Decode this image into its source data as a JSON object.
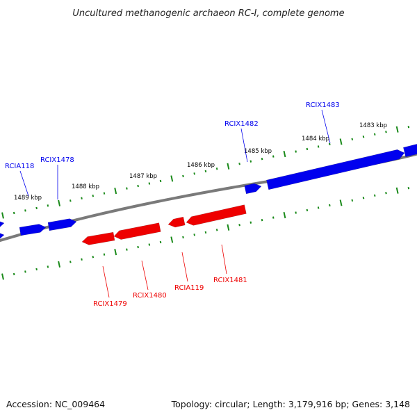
{
  "title": "Uncultured methanogenic archaeon RC-I, complete genome",
  "footer": {
    "accession": "Accession: NC_009464",
    "summary": "Topology: circular; Length: 3,179,916 bp; Genes: 3,148"
  },
  "colors": {
    "forward_gene": "#0000ee",
    "reverse_gene": "#ee0000",
    "backbone": "#808080",
    "ticks": "#1a8a1a"
  },
  "ruler": {
    "ticks": [
      {
        "label": "1483 kbp"
      },
      {
        "label": "1484 kbp"
      },
      {
        "label": "1485 kbp"
      },
      {
        "label": "1486 kbp"
      },
      {
        "label": "1487 kbp"
      },
      {
        "label": "1488 kbp"
      },
      {
        "label": "1489 kbp"
      }
    ]
  },
  "genes": {
    "forward": [
      {
        "label": "RCIA118"
      },
      {
        "label": "RCIX1478"
      },
      {
        "label": "RCIX1482"
      },
      {
        "label": "RCIX1483"
      }
    ],
    "reverse": [
      {
        "label": "RCIX1479"
      },
      {
        "label": "RCIX1480"
      },
      {
        "label": "RCIA119"
      },
      {
        "label": "RCIX1481"
      }
    ]
  }
}
